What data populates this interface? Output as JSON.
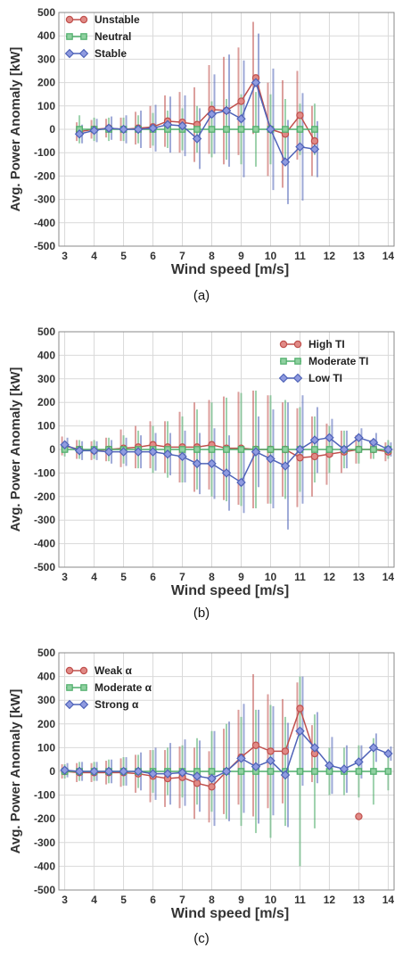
{
  "colors": {
    "red": "#c0504d",
    "green": "#4fae6b",
    "blue": "#4f63b8",
    "grid": "#d9d9d9"
  },
  "chart_data": [
    {
      "type": "line",
      "panel_label": "(a)",
      "xlabel": "Wind speed [m/s]",
      "ylabel": "Avg. Power Anomaly [kW]",
      "xlim": [
        2.8,
        14.2
      ],
      "ylim": [
        -500,
        500
      ],
      "xticks": [
        3,
        4,
        5,
        6,
        7,
        8,
        9,
        10,
        11,
        12,
        13,
        14
      ],
      "yticks": [
        -500,
        -400,
        -300,
        -200,
        -100,
        0,
        100,
        200,
        300,
        400,
        500
      ],
      "grid": true,
      "legend_position": "top-left",
      "x": [
        3.5,
        4,
        4.5,
        5,
        5.5,
        6,
        6.5,
        7,
        7.5,
        8,
        8.5,
        9,
        9.5,
        10,
        10.5,
        11,
        11.5
      ],
      "series": [
        {
          "name": "Unstable",
          "color": "#c0504d",
          "marker": "circle",
          "values": [
            -10,
            0,
            5,
            0,
            5,
            10,
            35,
            30,
            20,
            85,
            80,
            120,
            220,
            0,
            -20,
            60,
            -50
          ],
          "err": [
            40,
            40,
            40,
            50,
            70,
            90,
            110,
            130,
            160,
            190,
            230,
            230,
            240,
            200,
            230,
            190,
            150
          ]
        },
        {
          "name": "Neutral",
          "color": "#4fae6b",
          "marker": "square",
          "values": [
            0,
            0,
            0,
            0,
            0,
            0,
            0,
            0,
            0,
            0,
            0,
            0,
            0,
            0,
            0,
            0,
            0
          ],
          "err": [
            60,
            50,
            50,
            50,
            60,
            70,
            80,
            90,
            100,
            120,
            130,
            150,
            160,
            150,
            130,
            110,
            110
          ]
        },
        {
          "name": "Stable",
          "color": "#4f63b8",
          "marker": "diamond",
          "values": [
            -20,
            -5,
            5,
            0,
            0,
            5,
            20,
            15,
            -40,
            65,
            80,
            45,
            200,
            0,
            -140,
            -75,
            -85
          ],
          "err": [
            40,
            50,
            50,
            60,
            80,
            100,
            120,
            130,
            130,
            170,
            240,
            250,
            210,
            260,
            180,
            230,
            120
          ]
        }
      ]
    },
    {
      "type": "line",
      "panel_label": "(b)",
      "xlabel": "Wind speed [m/s]",
      "ylabel": "Avg. Power Anomaly [kW]",
      "xlim": [
        2.8,
        14.2
      ],
      "ylim": [
        -500,
        500
      ],
      "xticks": [
        3,
        4,
        5,
        6,
        7,
        8,
        9,
        10,
        11,
        12,
        13,
        14
      ],
      "yticks": [
        -500,
        -400,
        -300,
        -200,
        -100,
        0,
        100,
        200,
        300,
        400,
        500
      ],
      "grid": true,
      "legend_position": "top-right",
      "x": [
        3,
        3.5,
        4,
        4.5,
        5,
        5.5,
        6,
        6.5,
        7,
        7.5,
        8,
        8.5,
        9,
        9.5,
        10,
        10.5,
        11,
        11.5,
        12,
        12.5,
        13,
        13.5,
        14
      ],
      "series": [
        {
          "name": "High TI",
          "color": "#c0504d",
          "marker": "circle",
          "values": [
            15,
            0,
            -5,
            0,
            5,
            10,
            20,
            10,
            10,
            10,
            20,
            5,
            5,
            0,
            0,
            0,
            -35,
            -30,
            -20,
            -10,
            0,
            0,
            -10
          ],
          "err": [
            40,
            40,
            40,
            50,
            80,
            90,
            100,
            110,
            150,
            190,
            190,
            220,
            240,
            250,
            230,
            200,
            210,
            170,
            130,
            90,
            60,
            40,
            40
          ]
        },
        {
          "name": "Moderate TI",
          "color": "#4fae6b",
          "marker": "square",
          "values": [
            0,
            0,
            0,
            0,
            0,
            0,
            0,
            0,
            0,
            0,
            0,
            0,
            0,
            0,
            0,
            0,
            0,
            0,
            0,
            0,
            0,
            0,
            0
          ],
          "err": [
            30,
            40,
            40,
            50,
            60,
            80,
            100,
            120,
            140,
            170,
            200,
            220,
            240,
            250,
            230,
            210,
            180,
            140,
            100,
            80,
            60,
            40,
            40
          ]
        },
        {
          "name": "Low TI",
          "color": "#4f63b8",
          "marker": "diamond",
          "values": [
            20,
            -5,
            -5,
            -10,
            -10,
            -10,
            -10,
            -20,
            -30,
            -60,
            -60,
            -100,
            -140,
            -10,
            -40,
            -70,
            0,
            40,
            50,
            0,
            50,
            30,
            0
          ],
          "err": [
            30,
            40,
            40,
            50,
            60,
            70,
            80,
            90,
            110,
            130,
            150,
            160,
            130,
            150,
            210,
            270,
            230,
            140,
            80,
            80,
            40,
            40,
            30
          ]
        }
      ]
    },
    {
      "type": "line",
      "panel_label": "(c)",
      "xlabel": "Wind speed [m/s]",
      "ylabel": "Avg. Power Anomaly [kW]",
      "xlim": [
        2.8,
        14.2
      ],
      "ylim": [
        -500,
        500
      ],
      "xticks": [
        3,
        4,
        5,
        6,
        7,
        8,
        9,
        10,
        11,
        12,
        13,
        14
      ],
      "yticks": [
        -500,
        -400,
        -300,
        -200,
        -100,
        0,
        100,
        200,
        300,
        400,
        500
      ],
      "grid": true,
      "legend_position": "top-left",
      "x": [
        3,
        3.5,
        4,
        4.5,
        5,
        5.5,
        6,
        6.5,
        7,
        7.5,
        8,
        8.5,
        9,
        9.5,
        10,
        10.5,
        11,
        11.5,
        12,
        12.5,
        13,
        13.5,
        14
      ],
      "series": [
        {
          "name": "Weak α",
          "color": "#c0504d",
          "marker": "circle",
          "values": [
            0,
            -5,
            -5,
            -5,
            -5,
            -10,
            -20,
            -30,
            -25,
            -50,
            -65,
            0,
            60,
            110,
            85,
            85,
            265,
            75,
            null,
            null,
            -190,
            null,
            null
          ],
          "err": [
            30,
            40,
            40,
            50,
            60,
            80,
            110,
            120,
            130,
            150,
            150,
            180,
            200,
            300,
            240,
            220,
            110,
            120,
            null,
            null,
            null,
            null,
            null
          ]
        },
        {
          "name": "Moderate α",
          "color": "#4fae6b",
          "marker": "square",
          "values": [
            0,
            0,
            0,
            0,
            0,
            0,
            0,
            0,
            0,
            0,
            0,
            0,
            0,
            0,
            0,
            0,
            0,
            0,
            0,
            0,
            0,
            0,
            0
          ],
          "err": [
            30,
            40,
            40,
            50,
            60,
            70,
            90,
            100,
            110,
            140,
            170,
            200,
            230,
            260,
            280,
            230,
            400,
            240,
            100,
            100,
            110,
            140,
            80
          ]
        },
        {
          "name": "Strong α",
          "color": "#4f63b8",
          "marker": "diamond",
          "values": [
            5,
            0,
            0,
            0,
            0,
            0,
            -10,
            -10,
            -5,
            -20,
            -30,
            0,
            55,
            20,
            45,
            -15,
            170,
            100,
            25,
            10,
            40,
            100,
            75
          ],
          "err": [
            30,
            40,
            40,
            50,
            60,
            80,
            110,
            130,
            140,
            150,
            200,
            210,
            230,
            240,
            230,
            220,
            230,
            150,
            120,
            100,
            70,
            60,
            30
          ]
        }
      ]
    }
  ]
}
